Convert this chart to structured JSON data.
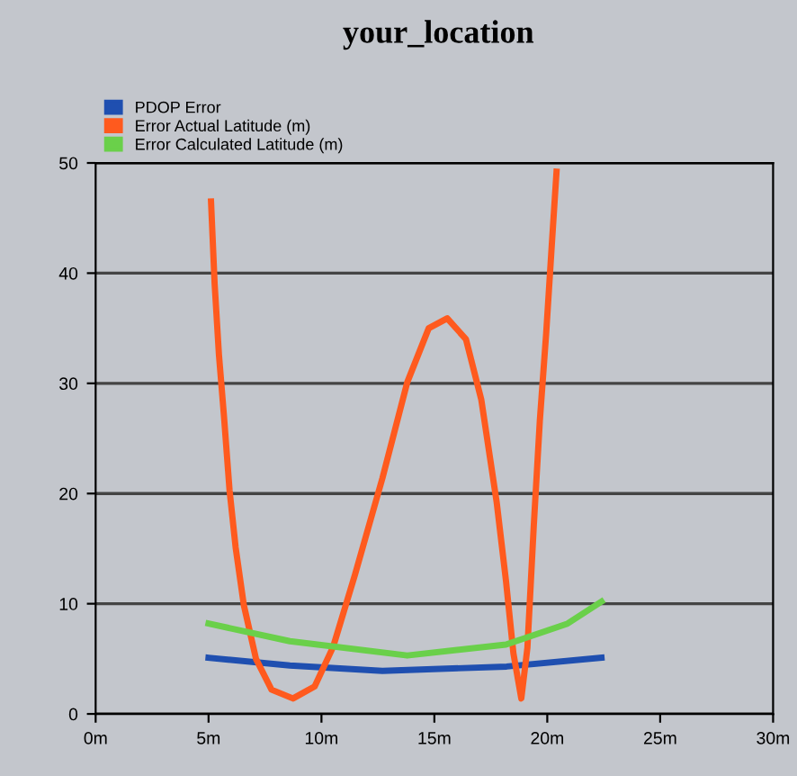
{
  "chart_data": {
    "type": "line",
    "title": "your_location",
    "legend": "top left",
    "grid": "y",
    "xlim": [
      0,
      30
    ],
    "xticks": [
      {
        "value": 0,
        "label": "0m"
      },
      {
        "value": 5,
        "label": "5m"
      },
      {
        "value": 10,
        "label": "10m"
      },
      {
        "value": 15,
        "label": "15m"
      },
      {
        "value": 20,
        "label": "20m"
      },
      {
        "value": 25,
        "label": "25m"
      },
      {
        "value": 30,
        "label": "30m"
      }
    ],
    "ylim": [
      0,
      50
    ],
    "yticks": [
      0,
      10,
      20,
      30,
      40,
      50
    ],
    "series": [
      {
        "name": "PDOP Error",
        "color": "#1f4fb0",
        "x": [
          5.0,
          8.6,
          12.7,
          18.2,
          22.4
        ],
        "values": [
          5.1,
          4.4,
          3.9,
          4.3,
          5.1
        ]
      },
      {
        "name": "Error Actual Latitude (m)",
        "color": "#ff5a1e",
        "x": [
          5.11,
          5.27,
          5.46,
          5.68,
          5.93,
          6.2,
          6.56,
          7.1,
          7.79,
          8.74,
          9.7,
          10.52,
          11.48,
          12.7,
          13.8,
          14.75,
          15.57,
          16.4,
          17.08,
          17.76,
          18.17,
          18.5,
          18.85,
          19.12,
          19.4,
          19.67,
          19.95,
          20.22,
          20.41
        ],
        "values": [
          46.5,
          39.0,
          32.6,
          27.1,
          20.3,
          15.1,
          9.9,
          5.0,
          2.2,
          1.4,
          2.5,
          6.1,
          12.6,
          21.4,
          30.1,
          35.0,
          35.9,
          34.0,
          28.5,
          19.2,
          12.1,
          5.5,
          1.4,
          6.0,
          17.0,
          26.6,
          34.5,
          43.2,
          49.2
        ]
      },
      {
        "name": "Error Calculated Latitude (m)",
        "color": "#6ad04a",
        "x": [
          5.0,
          8.6,
          13.8,
          18.17,
          20.9,
          22.4
        ],
        "values": [
          8.2,
          6.6,
          5.3,
          6.3,
          8.2,
          10.2
        ]
      }
    ]
  }
}
